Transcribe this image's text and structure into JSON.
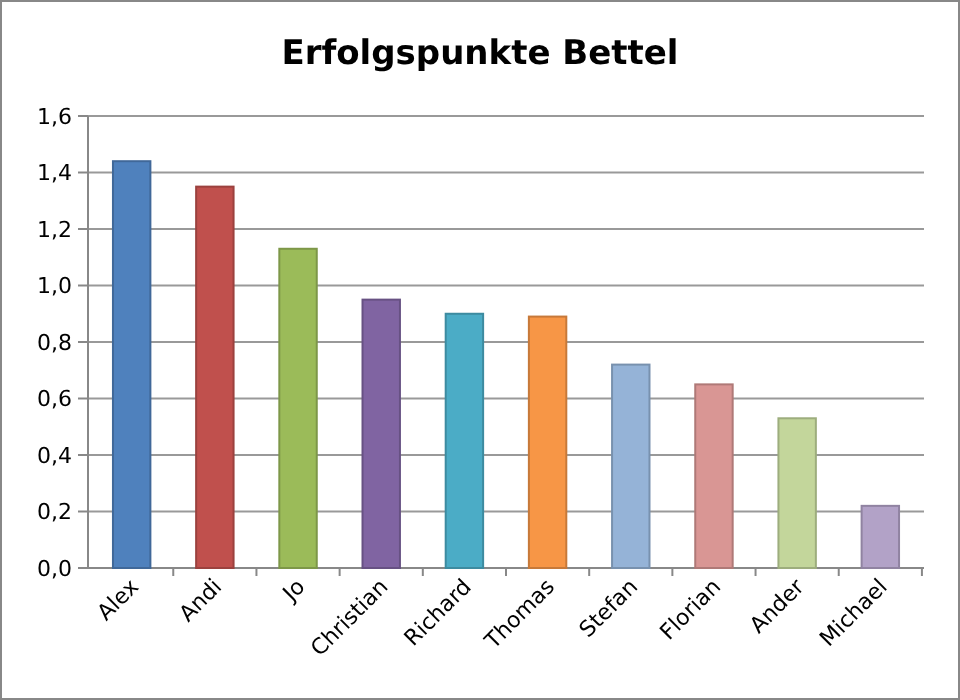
{
  "chart_data": {
    "type": "bar",
    "title": "Erfolgspunkte Bettel",
    "categories": [
      "Alex",
      "Andi",
      "Jo",
      "Christian",
      "Richard",
      "Thomas",
      "Stefan",
      "Florian",
      "Ander",
      "Michael"
    ],
    "values": [
      1.44,
      1.35,
      1.13,
      0.95,
      0.9,
      0.89,
      0.72,
      0.65,
      0.53,
      0.22
    ],
    "colors": [
      "#4f81bd",
      "#c0504d",
      "#9bbb59",
      "#8064a2",
      "#4bacc6",
      "#f79646",
      "#95b3d7",
      "#d99694",
      "#c3d69b",
      "#b2a2c7"
    ],
    "ylim": [
      0,
      1.6
    ],
    "yticks": [
      {
        "value": 0,
        "label": "0,0"
      },
      {
        "value": 0.2,
        "label": "0,2"
      },
      {
        "value": 0.4,
        "label": "0,4"
      },
      {
        "value": 0.6,
        "label": "0,6"
      },
      {
        "value": 0.8,
        "label": "0,8"
      },
      {
        "value": 1,
        "label": "1,0"
      },
      {
        "value": 1.2,
        "label": "1,2"
      },
      {
        "value": 1.4,
        "label": "1,4"
      },
      {
        "value": 1.6,
        "label": "1,6"
      }
    ],
    "grid": "y"
  }
}
